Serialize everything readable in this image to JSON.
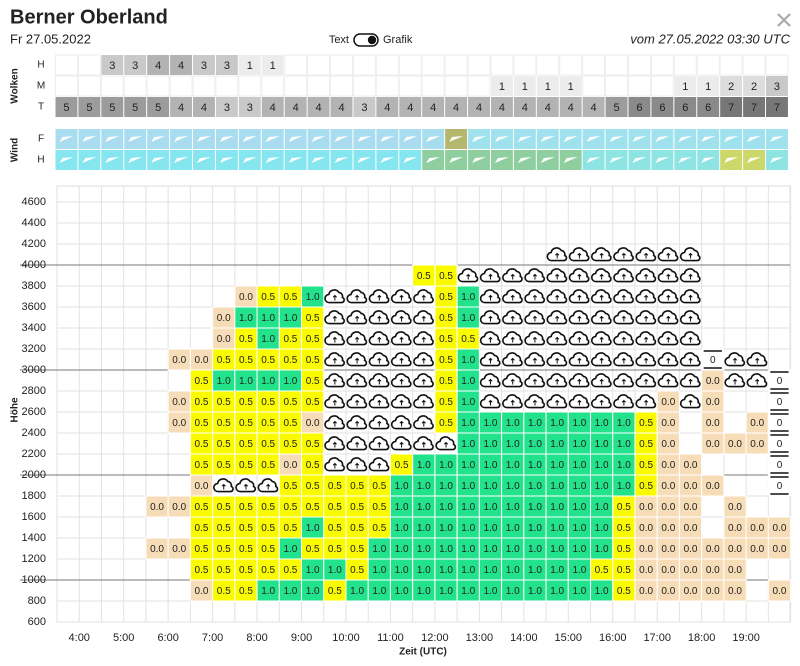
{
  "header": {
    "title": "Berner Oberland",
    "date": "Fr 27.05.2022",
    "toggle_left": "Text",
    "toggle_right": "Grafik",
    "valid": "vom 27.05.2022 03:30 UTC"
  },
  "clouds": {
    "label": "Wolken",
    "colors": {
      "1": "#ececec",
      "2": "#dddddd",
      "3": "#c9c9c9",
      "4": "#b3b3b3",
      "5": "#9c9c9c",
      "6": "#8a8a8a",
      "7": "#777777"
    },
    "rows": [
      {
        "name": "H",
        "cells": [
          null,
          null,
          "3",
          "3",
          "4",
          "4",
          "3",
          "3",
          "1",
          "1",
          null,
          null,
          null,
          null,
          null,
          null,
          null,
          null,
          null,
          null,
          null,
          null,
          null,
          null,
          null,
          null,
          null,
          null,
          null,
          null,
          null,
          null
        ]
      },
      {
        "name": "M",
        "cells": [
          null,
          null,
          null,
          null,
          null,
          null,
          null,
          null,
          null,
          null,
          null,
          null,
          null,
          null,
          null,
          null,
          null,
          null,
          null,
          "1",
          "1",
          "1",
          "1",
          null,
          null,
          null,
          null,
          "1",
          "1",
          "2",
          "2",
          "3"
        ]
      },
      {
        "name": "T",
        "cells": [
          "5",
          "5",
          "5",
          "5",
          "5",
          "4",
          "4",
          "3",
          "3",
          "4",
          "4",
          "4",
          "4",
          "3",
          "4",
          "4",
          "4",
          "4",
          "4",
          "4",
          "4",
          "4",
          "4",
          "4",
          "5",
          "6",
          "6",
          "6",
          "6",
          "7",
          "7",
          "7"
        ]
      }
    ]
  },
  "wind": {
    "label": "Wind",
    "rows": [
      {
        "name": "F",
        "colors": [
          "#aadcf0",
          "#aadcf0",
          "#aadcf0",
          "#aadcf0",
          "#aadcf0",
          "#aadcf0",
          "#aadcf0",
          "#aadcf0",
          "#aadcf0",
          "#aadcf0",
          "#aadcf0",
          "#aadcf0",
          "#aadcf0",
          "#aadcf0",
          "#aadcf0",
          "#aadcf0",
          "#aadcf0",
          "#b5b86c",
          "#9fe2ee",
          "#9fe2ee",
          "#9fe2ee",
          "#9fe2ee",
          "#9fe2ee",
          "#9fe2ee",
          "#9fe2ee",
          "#9fe2ee",
          "#9fe2ee",
          "#9fe2ee",
          "#9fe2ee",
          "#9fe2ee",
          "#9fe2ee",
          "#9fe2ee"
        ]
      },
      {
        "name": "H",
        "colors": [
          "#86e6f0",
          "#86e6f0",
          "#86e6f0",
          "#86e6f0",
          "#86e6f0",
          "#86e6f0",
          "#86e6f0",
          "#86e6f0",
          "#86e6f0",
          "#86e6f0",
          "#86e6f0",
          "#86e6f0",
          "#86e6f0",
          "#86e6f0",
          "#86e6f0",
          "#86e6f0",
          "#8fcf9f",
          "#8fcf9f",
          "#8fcf9f",
          "#8fcf9f",
          "#8fcf9f",
          "#8fcf9f",
          "#8fcf9f",
          "#8ee3e3",
          "#8ee3e3",
          "#8ee3e3",
          "#8ee3e3",
          "#8ee3e3",
          "#8ee3e3",
          "#cdd86a",
          "#cdd86a",
          "#8ee3e3"
        ]
      }
    ]
  },
  "grid": {
    "y_label": "Höhe",
    "x_label": "Zeit (UTC)",
    "ylim": [
      600,
      4600
    ],
    "yticks": [
      600,
      800,
      1000,
      1200,
      1400,
      1600,
      1800,
      2000,
      2200,
      2400,
      2600,
      2800,
      3000,
      3200,
      3400,
      3600,
      3800,
      4000,
      4200,
      4400,
      4600
    ],
    "xticks": [
      "4:00",
      "5:00",
      "6:00",
      "7:00",
      "8:00",
      "9:00",
      "10:00",
      "11:00",
      "12:00",
      "13:00",
      "14:00",
      "15:00",
      "16:00",
      "17:00",
      "18:00",
      "19:00"
    ],
    "colors": {
      "0.0": "#f7dcb8",
      "0.5": "#fbfb00",
      "1.0": "#22e38c"
    },
    "rows": [
      null,
      [
        null,
        null,
        null,
        null,
        null,
        null,
        "0.0",
        "0.5",
        "0.5",
        "1.0",
        "1.0",
        "1.0",
        "0.5",
        "1.0",
        "1.0",
        "1.0",
        "1.0",
        "1.0",
        "1.0",
        "1.0",
        "1.0",
        "1.0",
        "1.0",
        "1.0",
        "1.0",
        "0.5",
        "0.0",
        "0.0",
        "0.0",
        "0.0",
        "0.0",
        null,
        "0.0"
      ],
      [
        null,
        null,
        null,
        null,
        null,
        null,
        "0.5",
        "0.5",
        "0.5",
        "0.5",
        "0.5",
        "1.0",
        "1.0",
        "0.5",
        "1.0",
        "1.0",
        "1.0",
        "1.0",
        "1.0",
        "1.0",
        "1.0",
        "1.0",
        "1.0",
        "1.0",
        "0.5",
        "0.5",
        "0.0",
        "0.0",
        "0.0",
        "0.0",
        "0.0",
        null,
        null
      ],
      [
        null,
        null,
        null,
        null,
        "0.0",
        "0.0",
        "0.5",
        "0.5",
        "0.5",
        "0.5",
        "1.0",
        "0.5",
        "0.5",
        "0.5",
        "1.0",
        "1.0",
        "1.0",
        "1.0",
        "1.0",
        "1.0",
        "1.0",
        "1.0",
        "1.0",
        "1.0",
        "1.0",
        "0.5",
        "0.0",
        "0.0",
        "0.0",
        "0.0",
        "0.0",
        "0.0",
        "0.0"
      ],
      [
        null,
        null,
        null,
        null,
        null,
        null,
        "0.5",
        "0.5",
        "0.5",
        "0.5",
        "0.5",
        "1.0",
        "0.5",
        "0.5",
        "0.5",
        "1.0",
        "1.0",
        "1.0",
        "1.0",
        "1.0",
        "1.0",
        "1.0",
        "1.0",
        "1.0",
        "1.0",
        "0.5",
        "0.0",
        "0.0",
        "0.0",
        null,
        "0.0",
        "0.0",
        "0.0"
      ],
      [
        null,
        null,
        null,
        null,
        "0.0",
        "0.0",
        "0.5",
        "0.5",
        "0.5",
        "0.5",
        "0.5",
        "0.5",
        "0.5",
        "0.5",
        "0.5",
        "1.0",
        "1.0",
        "1.0",
        "1.0",
        "1.0",
        "1.0",
        "1.0",
        "1.0",
        "1.0",
        "1.0",
        "0.5",
        "0.0",
        "0.0",
        "0.0",
        null,
        "0.0",
        null,
        null
      ],
      [
        null,
        null,
        null,
        null,
        null,
        null,
        "0.0",
        {
          "cloud": true
        },
        {
          "cloud": true
        },
        {
          "cloud": true
        },
        "0.5",
        "0.5",
        "0.5",
        "0.5",
        "0.5",
        "1.0",
        "1.0",
        "1.0",
        "1.0",
        "1.0",
        "1.0",
        "1.0",
        "1.0",
        "1.0",
        "1.0",
        "1.0",
        "0.5",
        "0.0",
        "0.0",
        "0.0",
        null,
        null,
        "0"
      ],
      [
        null,
        null,
        null,
        null,
        null,
        null,
        "0.5",
        "0.5",
        "0.5",
        "0.5",
        "0.0",
        "0.5",
        {
          "cloud": true
        },
        {
          "cloud": true
        },
        {
          "cloud": true
        },
        "0.5",
        "1.0",
        "1.0",
        "1.0",
        "1.0",
        "1.0",
        "1.0",
        "1.0",
        "1.0",
        "1.0",
        "1.0",
        "0.5",
        "0.0",
        "0.0",
        null,
        null,
        null,
        "0"
      ],
      [
        null,
        null,
        null,
        null,
        null,
        null,
        "0.5",
        "0.5",
        "0.5",
        "0.5",
        "0.5",
        "0.5",
        {
          "cloud": true
        },
        {
          "cloud": true
        },
        {
          "cloud": true
        },
        {
          "cloud": true
        },
        {
          "cloud": true
        },
        {
          "cloud": true
        },
        "1.0",
        "1.0",
        "1.0",
        "1.0",
        "1.0",
        "1.0",
        "1.0",
        "1.0",
        "0.5",
        "0.0",
        null,
        "0.0",
        "0.0",
        "0.0",
        "0"
      ],
      [
        null,
        null,
        null,
        null,
        null,
        "0.0",
        "0.5",
        "0.5",
        "0.5",
        "0.5",
        "0.5",
        "0.0",
        {
          "cloud": true
        },
        {
          "cloud": true
        },
        {
          "cloud": true
        },
        {
          "cloud": true
        },
        {
          "cloud": true
        },
        "0.5",
        "1.0",
        "1.0",
        "1.0",
        "1.0",
        "1.0",
        "1.0",
        "1.0",
        "1.0",
        "0.5",
        "0.0",
        null,
        "0.0",
        null,
        "0.0",
        "0"
      ],
      [
        null,
        null,
        null,
        null,
        null,
        "0.0",
        "0.5",
        "0.5",
        "0.5",
        "0.5",
        "0.5",
        "0.5",
        {
          "cloud": true
        },
        {
          "cloud": true
        },
        {
          "cloud": true
        },
        {
          "cloud": true
        },
        {
          "cloud": true
        },
        "0.5",
        "1.0",
        {
          "cloud": true
        },
        {
          "cloud": true
        },
        {
          "cloud": true
        },
        {
          "cloud": true
        },
        {
          "cloud": true
        },
        {
          "cloud": true
        },
        {
          "cloud": true
        },
        {
          "cloud": true
        },
        "0.0",
        {
          "cloud": true
        },
        "0.0",
        null,
        null,
        "0"
      ],
      [
        null,
        null,
        null,
        null,
        null,
        null,
        "0.5",
        "1.0",
        "1.0",
        "1.0",
        "1.0",
        "0.5",
        {
          "cloud": true
        },
        {
          "cloud": true
        },
        {
          "cloud": true
        },
        {
          "cloud": true
        },
        {
          "cloud": true
        },
        "0.5",
        "1.0",
        {
          "cloud": true
        },
        {
          "cloud": true
        },
        {
          "cloud": true
        },
        {
          "cloud": true
        },
        {
          "cloud": true
        },
        {
          "cloud": true
        },
        {
          "cloud": true
        },
        {
          "cloud": true
        },
        {
          "cloud": true
        },
        {
          "cloud": true
        },
        "0.0",
        {
          "cloud": true
        },
        {
          "cloud": true
        },
        "0"
      ],
      [
        null,
        null,
        null,
        null,
        null,
        "0.0",
        "0.0",
        "0.5",
        "0.5",
        "0.5",
        "0.5",
        "0.5",
        {
          "cloud": true
        },
        {
          "cloud": true
        },
        {
          "cloud": true
        },
        {
          "cloud": true
        },
        {
          "cloud": true
        },
        "0.5",
        "1.0",
        {
          "cloud": true
        },
        {
          "cloud": true
        },
        {
          "cloud": true
        },
        {
          "cloud": true
        },
        {
          "cloud": true
        },
        {
          "cloud": true
        },
        {
          "cloud": true
        },
        {
          "cloud": true
        },
        {
          "cloud": true
        },
        {
          "cloud": true
        },
        "0",
        {
          "cloud": true
        },
        {
          "cloud": true
        },
        null
      ],
      [
        null,
        null,
        null,
        null,
        null,
        null,
        null,
        "0.0",
        "0.5",
        "1.0",
        "0.5",
        "0.5",
        {
          "cloud": true
        },
        {
          "cloud": true
        },
        {
          "cloud": true
        },
        {
          "cloud": true
        },
        {
          "cloud": true
        },
        "0.5",
        "0.5",
        {
          "cloud": true
        },
        {
          "cloud": true
        },
        {
          "cloud": true
        },
        {
          "cloud": true
        },
        {
          "cloud": true
        },
        {
          "cloud": true
        },
        {
          "cloud": true
        },
        {
          "cloud": true
        },
        {
          "cloud": true
        },
        {
          "cloud": true
        },
        null,
        null,
        null,
        null
      ],
      [
        null,
        null,
        null,
        null,
        null,
        null,
        null,
        "0.0",
        "1.0",
        "1.0",
        "1.0",
        "0.5",
        {
          "cloud": true
        },
        {
          "cloud": true
        },
        {
          "cloud": true
        },
        {
          "cloud": true
        },
        {
          "cloud": true
        },
        "0.5",
        "1.0",
        {
          "cloud": true
        },
        {
          "cloud": true
        },
        {
          "cloud": true
        },
        {
          "cloud": true
        },
        {
          "cloud": true
        },
        {
          "cloud": true
        },
        {
          "cloud": true
        },
        {
          "cloud": true
        },
        {
          "cloud": true
        },
        {
          "cloud": true
        },
        null,
        null,
        null,
        null
      ],
      [
        null,
        null,
        null,
        null,
        null,
        null,
        null,
        null,
        "0.0",
        "0.5",
        "0.5",
        "1.0",
        {
          "cloud": true
        },
        {
          "cloud": true
        },
        {
          "cloud": true
        },
        {
          "cloud": true
        },
        {
          "cloud": true
        },
        "0.5",
        "1.0",
        {
          "cloud": true
        },
        {
          "cloud": true
        },
        {
          "cloud": true
        },
        {
          "cloud": true
        },
        {
          "cloud": true
        },
        {
          "cloud": true
        },
        {
          "cloud": true
        },
        {
          "cloud": true
        },
        {
          "cloud": true
        },
        {
          "cloud": true
        },
        null,
        null,
        null,
        null
      ],
      [
        null,
        null,
        null,
        null,
        null,
        null,
        null,
        null,
        null,
        null,
        null,
        null,
        null,
        null,
        null,
        null,
        "0.5",
        "0.5",
        {
          "cloud": true
        },
        {
          "cloud": true
        },
        {
          "cloud": true
        },
        {
          "cloud": true
        },
        {
          "cloud": true
        },
        {
          "cloud": true
        },
        {
          "cloud": true
        },
        {
          "cloud": true
        },
        {
          "cloud": true
        },
        {
          "cloud": true
        },
        {
          "cloud": true
        },
        null,
        null,
        null,
        null
      ],
      [
        null,
        null,
        null,
        null,
        null,
        null,
        null,
        null,
        null,
        null,
        null,
        null,
        null,
        null,
        null,
        null,
        null,
        null,
        null,
        null,
        null,
        null,
        {
          "cloud": true
        },
        {
          "cloud": true
        },
        {
          "cloud": true
        },
        {
          "cloud": true
        },
        {
          "cloud": true
        },
        {
          "cloud": true
        },
        {
          "cloud": true
        },
        null,
        null,
        null,
        null
      ],
      null,
      null
    ]
  }
}
